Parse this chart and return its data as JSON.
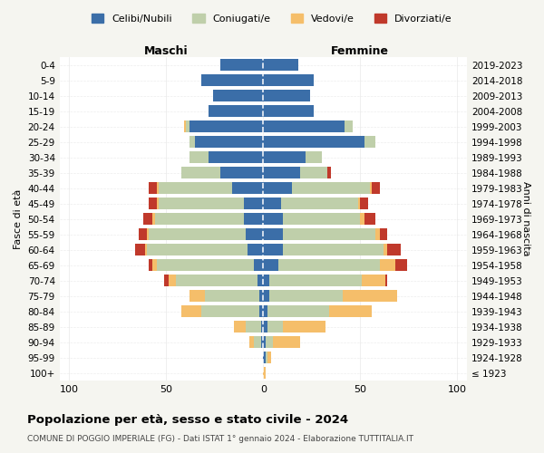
{
  "age_groups": [
    "100+",
    "95-99",
    "90-94",
    "85-89",
    "80-84",
    "75-79",
    "70-74",
    "65-69",
    "60-64",
    "55-59",
    "50-54",
    "45-49",
    "40-44",
    "35-39",
    "30-34",
    "25-29",
    "20-24",
    "15-19",
    "10-14",
    "5-9",
    "0-4"
  ],
  "birth_years": [
    "≤ 1923",
    "1924-1928",
    "1929-1933",
    "1934-1938",
    "1939-1943",
    "1944-1948",
    "1949-1953",
    "1954-1958",
    "1959-1963",
    "1964-1968",
    "1969-1973",
    "1974-1978",
    "1979-1983",
    "1984-1988",
    "1989-1993",
    "1994-1998",
    "1999-2003",
    "2004-2008",
    "2009-2013",
    "2014-2018",
    "2019-2023"
  ],
  "colors": {
    "celibi": "#3B6EA8",
    "coniugati": "#BFCFAA",
    "vedovi": "#F5BE6A",
    "divorziati": "#C0392B"
  },
  "legend_labels": [
    "Celibi/Nubili",
    "Coniugati/e",
    "Vedovi/e",
    "Divorziati/e"
  ],
  "title": "Popolazione per età, sesso e stato civile - 2024",
  "subtitle": "COMUNE DI POGGIO IMPERIALE (FG) - Dati ISTAT 1° gennaio 2024 - Elaborazione TUTTITALIA.IT",
  "xlabel_left": "Maschi",
  "xlabel_right": "Femmine",
  "ylabel_left": "Fasce di età",
  "ylabel_right": "Anni di nascita",
  "maschi": {
    "celibi": [
      0,
      0,
      1,
      1,
      2,
      2,
      3,
      5,
      8,
      9,
      10,
      10,
      16,
      22,
      28,
      35,
      38,
      28,
      26,
      32,
      22
    ],
    "coniugati": [
      0,
      0,
      4,
      8,
      30,
      28,
      42,
      50,
      52,
      50,
      46,
      44,
      38,
      20,
      10,
      3,
      2,
      0,
      0,
      0,
      0
    ],
    "vedovi": [
      0,
      0,
      2,
      6,
      10,
      8,
      4,
      2,
      1,
      1,
      1,
      1,
      1,
      0,
      0,
      0,
      1,
      0,
      0,
      0,
      0
    ],
    "divorziati": [
      0,
      0,
      0,
      0,
      0,
      0,
      2,
      2,
      5,
      4,
      5,
      4,
      4,
      0,
      0,
      0,
      0,
      0,
      0,
      0,
      0
    ]
  },
  "femmine": {
    "nubili": [
      0,
      1,
      1,
      2,
      2,
      3,
      3,
      8,
      10,
      10,
      10,
      9,
      15,
      19,
      22,
      52,
      42,
      26,
      24,
      26,
      18
    ],
    "coniugati": [
      0,
      1,
      4,
      8,
      32,
      38,
      48,
      52,
      52,
      48,
      40,
      40,
      40,
      14,
      8,
      6,
      4,
      0,
      0,
      0,
      0
    ],
    "vedovi": [
      1,
      2,
      14,
      22,
      22,
      28,
      12,
      8,
      2,
      2,
      2,
      1,
      1,
      0,
      0,
      0,
      0,
      0,
      0,
      0,
      0
    ],
    "divorziati": [
      0,
      0,
      0,
      0,
      0,
      0,
      1,
      6,
      7,
      4,
      6,
      4,
      4,
      2,
      0,
      0,
      0,
      0,
      0,
      0,
      0
    ]
  },
  "xlim": 105,
  "background_color": "#f5f5f0",
  "plot_bg": "#ffffff"
}
